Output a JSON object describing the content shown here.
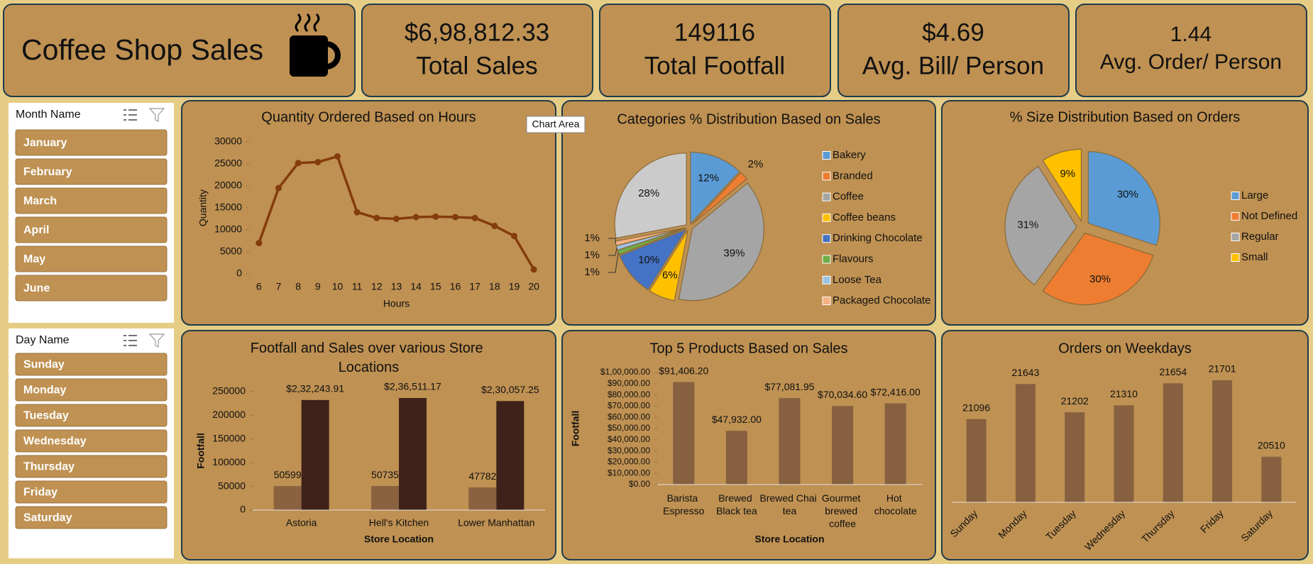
{
  "header": {
    "title": "Coffee Shop Sales"
  },
  "kpis": [
    {
      "value": "$6,98,812.33",
      "label": "Total Sales"
    },
    {
      "value": "149116",
      "label": "Total Footfall"
    },
    {
      "value": "$4.69",
      "label": "Avg. Bill/ Person"
    },
    {
      "value": "1.44",
      "label": "Avg. Order/ Person"
    }
  ],
  "tooltip": "Chart Area",
  "slicers": [
    {
      "title": "Month Name",
      "items": [
        "January",
        "February",
        "March",
        "April",
        "May",
        "June"
      ]
    },
    {
      "title": "Day Name",
      "items": [
        "Sunday",
        "Monday",
        "Tuesday",
        "Wednesday",
        "Thursday",
        "Friday",
        "Saturday"
      ]
    }
  ],
  "chart_data": [
    {
      "type": "line",
      "title": "Quantity Ordered Based on Hours",
      "x_label": "Hours",
      "y_label": "Quantity",
      "categories": [
        "6",
        "7",
        "8",
        "9",
        "10",
        "11",
        "12",
        "13",
        "14",
        "15",
        "16",
        "17",
        "18",
        "19",
        "20"
      ],
      "values": [
        7000,
        19500,
        25200,
        25400,
        26700,
        14000,
        12700,
        12500,
        12900,
        13000,
        12900,
        12700,
        10900,
        8600,
        1000
      ],
      "color": "#843c0c",
      "ylim": [
        0,
        30000
      ],
      "yticks": [
        0,
        5000,
        10000,
        15000,
        20000,
        25000,
        30000
      ],
      "grid": false
    },
    {
      "type": "pie",
      "title": "Categories % Distribution Based on Sales",
      "categories": [
        "Bakery",
        "Branded",
        "Coffee",
        "Coffee beans",
        "Drinking Chocolate",
        "Flavours",
        "Loose Tea",
        "Packaged Chocolate",
        null
      ],
      "values": [
        12,
        2,
        39,
        6,
        10,
        1,
        1,
        1,
        28
      ],
      "value_labels": [
        "12%",
        "2%",
        "39%",
        "6%",
        "10%",
        "1%",
        "1%",
        "1%",
        "28%"
      ],
      "colors": [
        "#5b9bd5",
        "#ed7d31",
        "#a5a5a5",
        "#ffc000",
        "#4472c4",
        "#70ad47",
        "#9dc3e6",
        "#f4b183",
        "#cbcbcb"
      ],
      "legend": "right"
    },
    {
      "type": "pie",
      "title": "% Size Distribution Based on Orders",
      "categories": [
        "Large",
        "Not Defined",
        "Regular",
        "Small"
      ],
      "values": [
        30,
        30,
        31,
        9
      ],
      "value_labels": [
        "30%",
        "30%",
        "31%",
        "9%"
      ],
      "colors": [
        "#5b9bd5",
        "#ed7d31",
        "#a5a5a5",
        "#ffc000"
      ],
      "legend": "right"
    },
    {
      "type": "bar",
      "title": "Footfall and Sales over various Store Locations",
      "x_label": "Store Location",
      "y_label": "Footfall",
      "categories": [
        "Astoria",
        "Hell's Kitchen",
        "Lower Manhattan"
      ],
      "series": [
        {
          "color": "#8b6240",
          "values": [
            50599,
            50735,
            47782
          ]
        },
        {
          "color": "#3f2219",
          "values": [
            232243.91,
            236511.17,
            230057.25
          ],
          "value_labels": [
            "$2,32,243.91",
            "$2,36,511.17",
            "$2,30,057.25"
          ]
        }
      ],
      "ylim": [
        0,
        250000
      ],
      "yticks": [
        0,
        50000,
        100000,
        150000,
        200000,
        250000
      ],
      "grid": false
    },
    {
      "type": "bar",
      "title": "Top 5 Products Based on Sales",
      "x_label": "Store Location",
      "y_label": "Footfall",
      "categories": [
        "Barista Espresso",
        "Brewed Black tea",
        "Brewed Chai tea",
        "Gourmet brewed coffee",
        "Hot chocolate"
      ],
      "values": [
        91406.2,
        47932.0,
        77081.95,
        70034.6,
        72416.0
      ],
      "value_labels": [
        "$91,406.20",
        "$47,932.00",
        "$77,081.95",
        "$70,034.60",
        "$72,416.00"
      ],
      "color": "#86603f",
      "ylim": [
        0,
        100000
      ],
      "yticks": [
        {
          "value": 0,
          "label": "$0.00"
        },
        {
          "value": 10000,
          "label": "$10,000.00"
        },
        {
          "value": 20000,
          "label": "$20,000.00"
        },
        {
          "value": 30000,
          "label": "$30,000.00"
        },
        {
          "value": 40000,
          "label": "$40,000.00"
        },
        {
          "value": 50000,
          "label": "$50,000.00"
        },
        {
          "value": 60000,
          "label": "$60,000.00"
        },
        {
          "value": 70000,
          "label": "$70,000.00"
        },
        {
          "value": 80000,
          "label": "$80,000.00"
        },
        {
          "value": 90000,
          "label": "$90,000.00"
        },
        {
          "value": 100000,
          "label": "$1,00,000.00"
        }
      ],
      "grid": false
    },
    {
      "type": "bar",
      "title": "Orders on Weekdays",
      "categories": [
        "Sunday",
        "Monday",
        "Tuesday",
        "Wednesday",
        "Thursday",
        "Friday",
        "Saturday"
      ],
      "values": [
        21096,
        21643,
        21202,
        21310,
        21654,
        21701,
        20510
      ],
      "color": "#86603f",
      "ylim": [
        19800,
        22000
      ],
      "grid": false
    }
  ]
}
